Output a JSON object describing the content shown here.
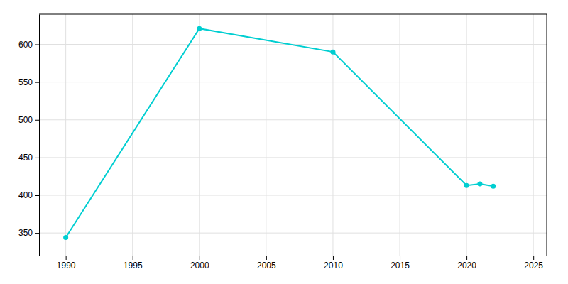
{
  "chart_data": {
    "type": "line",
    "x": [
      1990,
      2000,
      2010,
      2020,
      2021,
      2022
    ],
    "values": [
      344,
      621,
      590,
      413,
      415,
      412
    ],
    "color": "#00CED1",
    "marker": "circle",
    "xlim": [
      1988,
      2026
    ],
    "ylim": [
      320,
      640
    ],
    "xticks": [
      1990,
      1995,
      2000,
      2005,
      2010,
      2015,
      2020,
      2025
    ],
    "yticks": [
      350,
      400,
      450,
      500,
      550,
      600
    ],
    "grid": true
  }
}
